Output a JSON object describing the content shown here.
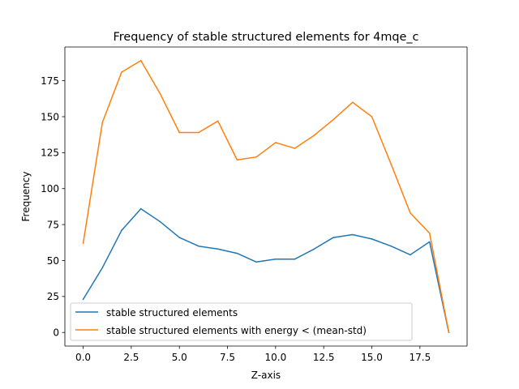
{
  "chart_data": {
    "type": "line",
    "title": "Frequency of stable structured elements for 4mqe_c",
    "xlabel": "Z-axis",
    "ylabel": "Frequency",
    "xlim": [
      -0.95,
      19.95
    ],
    "ylim": [
      -9.45,
      198.45
    ],
    "xticks": [
      0,
      2.5,
      5,
      7.5,
      10,
      12.5,
      15,
      17.5
    ],
    "xtick_labels": [
      "0.0",
      "2.5",
      "5.0",
      "7.5",
      "10.0",
      "12.5",
      "15.0",
      "17.5"
    ],
    "yticks": [
      0,
      25,
      50,
      75,
      100,
      125,
      150,
      175
    ],
    "ytick_labels": [
      "0",
      "25",
      "50",
      "75",
      "100",
      "125",
      "150",
      "175"
    ],
    "grid": false,
    "legend_position": "lower-left",
    "x": [
      0,
      1,
      2,
      3,
      4,
      5,
      6,
      7,
      8,
      9,
      10,
      11,
      12,
      13,
      14,
      15,
      16,
      17,
      18,
      19
    ],
    "series": [
      {
        "name": "stable structured elements",
        "color": "#1f77b4",
        "values": [
          23,
          45,
          71,
          86,
          77,
          66,
          60,
          58,
          55,
          49,
          51,
          51,
          58,
          66,
          68,
          65,
          60,
          54,
          63,
          0
        ]
      },
      {
        "name": "stable structured elements with energy < (mean-std)",
        "color": "#ff7f0e",
        "values": [
          62,
          146,
          181,
          189,
          166,
          139,
          139,
          147,
          120,
          122,
          132,
          128,
          137,
          148,
          160,
          150,
          117,
          83,
          69,
          0
        ]
      }
    ]
  }
}
